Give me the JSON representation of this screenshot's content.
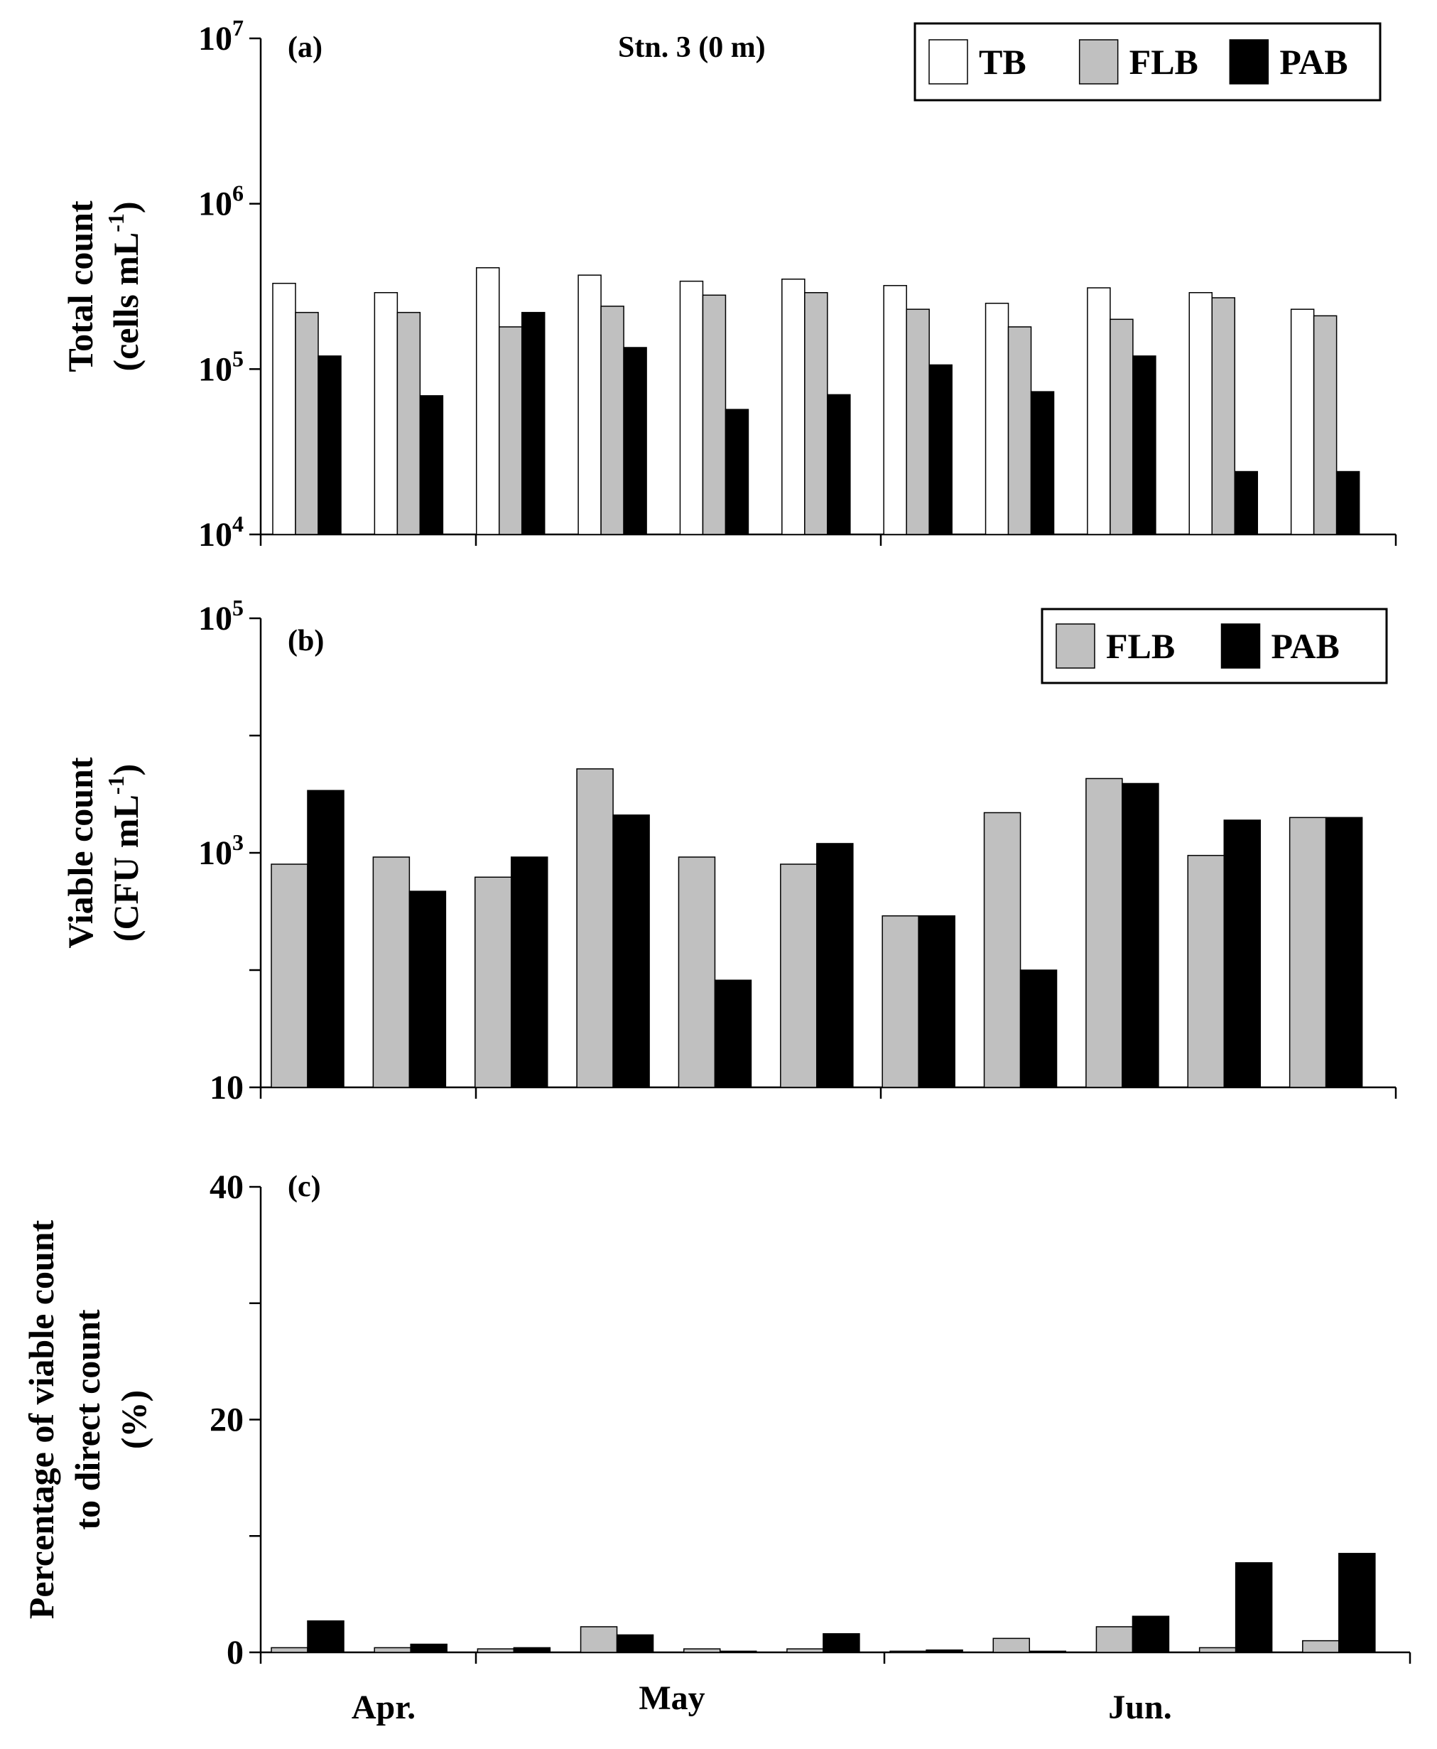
{
  "figure": {
    "station_label": "Stn. 3 (0 m)",
    "month_labels": [
      "Apr.",
      "May",
      "Jun."
    ],
    "colors": {
      "TB": "#ffffff",
      "FLB": "#c0c0c0",
      "PAB": "#000000",
      "axis": "#000000"
    }
  },
  "chart_data": [
    {
      "type": "bar",
      "panel_label": "(a)",
      "yscale": "log",
      "ylim": [
        10000,
        10000000
      ],
      "yticks": [
        {
          "value": 10000,
          "base": "10",
          "exp": "4"
        },
        {
          "value": 100000,
          "base": "10",
          "exp": "5"
        },
        {
          "value": 1000000,
          "base": "10",
          "exp": "6"
        },
        {
          "value": 10000000,
          "base": "10",
          "exp": "7"
        }
      ],
      "ylabel_line1": "Total count",
      "ylabel_line2_base": "(cells mL",
      "ylabel_line2_sup": "-1",
      "ylabel_line2_end": ")",
      "legend": [
        "TB",
        "FLB",
        "PAB"
      ],
      "series": [
        {
          "name": "TB",
          "values": [
            330000,
            290000,
            410000,
            370000,
            340000,
            350000,
            320000,
            250000,
            310000,
            290000,
            230000
          ]
        },
        {
          "name": "FLB",
          "values": [
            220000,
            220000,
            180000,
            240000,
            280000,
            290000,
            230000,
            180000,
            200000,
            270000,
            210000
          ]
        },
        {
          "name": "PAB",
          "values": [
            120000,
            69000,
            220000,
            135000,
            57000,
            70000,
            106000,
            73000,
            120000,
            24000,
            24000
          ]
        }
      ]
    },
    {
      "type": "bar",
      "panel_label": "(b)",
      "yscale": "log",
      "ylim": [
        10,
        100000
      ],
      "yticks": [
        {
          "value": 10,
          "base": "10",
          "exp": ""
        },
        {
          "value": 1000,
          "base": "10",
          "exp": "3"
        },
        {
          "value": 100000,
          "base": "10",
          "exp": "5"
        }
      ],
      "yminor": [
        100,
        10000
      ],
      "ylabel_line1": "Viable count",
      "ylabel_line2_base": "(CFU mL",
      "ylabel_line2_sup": "-1",
      "ylabel_line2_end": ")",
      "legend": [
        "FLB",
        "PAB"
      ],
      "series": [
        {
          "name": "FLB",
          "values": [
            800,
            920,
            620,
            5200,
            920,
            800,
            290,
            2200,
            4300,
            950,
            2000
          ]
        },
        {
          "name": "PAB",
          "values": [
            3400,
            470,
            920,
            2100,
            82,
            1200,
            290,
            100,
            3900,
            1900,
            2000
          ]
        }
      ]
    },
    {
      "type": "bar",
      "panel_label": "(c)",
      "yscale": "linear",
      "ylim": [
        0,
        40
      ],
      "yticks": [
        {
          "value": 0,
          "label": "0"
        },
        {
          "value": 20,
          "label": "20"
        },
        {
          "value": 40,
          "label": "40"
        }
      ],
      "yminor": [
        10,
        30
      ],
      "ylabel_line1": "Percentage of viable count",
      "ylabel_line2": "to direct count",
      "ylabel_line3": "(%)",
      "series": [
        {
          "name": "FLB",
          "values": [
            0.4,
            0.4,
            0.3,
            2.2,
            0.3,
            0.3,
            0.1,
            1.2,
            2.2,
            0.4,
            1.0
          ]
        },
        {
          "name": "PAB",
          "values": [
            2.7,
            0.7,
            0.4,
            1.5,
            0.1,
            1.6,
            0.2,
            0.1,
            3.1,
            7.7,
            8.5
          ]
        }
      ]
    }
  ]
}
